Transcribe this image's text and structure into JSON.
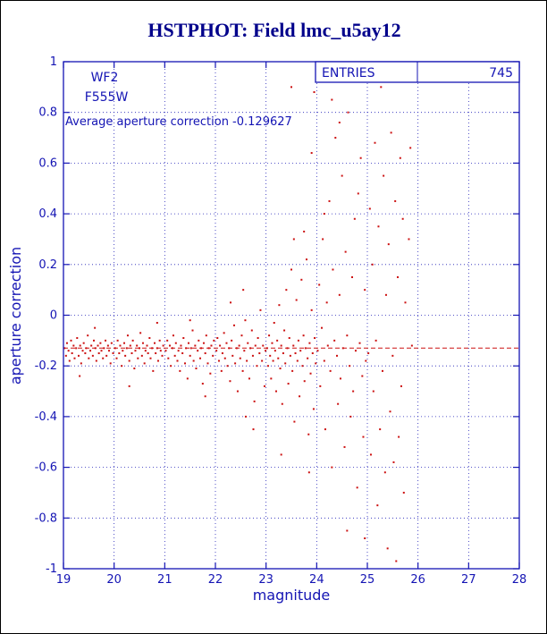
{
  "colors": {
    "title": "#00008b",
    "plot_blue": "#1414b4",
    "grid_blue": "#2020b8",
    "point_red": "#cc1111",
    "refline_red": "#cc1111",
    "background": "#ffffff",
    "border": "#000000"
  },
  "chart_data": {
    "type": "scatter",
    "title": "HSTPHOT: Field lmc_u5ay12",
    "xlabel": "magnitude",
    "ylabel": "aperture correction",
    "xlim": [
      19,
      28
    ],
    "ylim": [
      -1,
      1
    ],
    "x_ticks": [
      19,
      20,
      21,
      22,
      23,
      24,
      25,
      26,
      27,
      28
    ],
    "y_ticks": [
      -1,
      -0.8,
      -0.6,
      -0.4,
      -0.2,
      0,
      0.2,
      0.4,
      0.6,
      0.8,
      1
    ],
    "grid": true,
    "legend_position": "none",
    "stats": {
      "label": "ENTRIES",
      "value": "745"
    },
    "labels": {
      "detector": "WF2",
      "filter": "F555W",
      "average_text": "Average aperture correction -0.129627"
    },
    "reference_line": {
      "y": -0.129627,
      "style": "dashed"
    },
    "points": [
      [
        19.02,
        -0.13
      ],
      [
        19.05,
        -0.16
      ],
      [
        19.07,
        -0.11
      ],
      [
        19.1,
        -0.14
      ],
      [
        19.12,
        -0.18
      ],
      [
        19.15,
        -0.1
      ],
      [
        19.17,
        -0.15
      ],
      [
        19.2,
        -0.12
      ],
      [
        19.22,
        -0.17
      ],
      [
        19.25,
        -0.13
      ],
      [
        19.27,
        -0.09
      ],
      [
        19.3,
        -0.16
      ],
      [
        19.32,
        -0.24
      ],
      [
        19.33,
        -0.12
      ],
      [
        19.35,
        -0.19
      ],
      [
        19.38,
        -0.14
      ],
      [
        19.4,
        -0.11
      ],
      [
        19.43,
        -0.15
      ],
      [
        19.45,
        -0.13
      ],
      [
        19.48,
        -0.08
      ],
      [
        19.5,
        -0.17
      ],
      [
        19.53,
        -0.14
      ],
      [
        19.55,
        -0.12
      ],
      [
        19.58,
        -0.16
      ],
      [
        19.6,
        -0.1
      ],
      [
        19.62,
        -0.05
      ],
      [
        19.63,
        -0.13
      ],
      [
        19.65,
        -0.18
      ],
      [
        19.68,
        -0.12
      ],
      [
        19.7,
        -0.15
      ],
      [
        19.73,
        -0.11
      ],
      [
        19.75,
        -0.14
      ],
      [
        19.78,
        -0.17
      ],
      [
        19.8,
        -0.13
      ],
      [
        19.83,
        -0.1
      ],
      [
        19.85,
        -0.16
      ],
      [
        19.88,
        -0.12
      ],
      [
        19.9,
        -0.14
      ],
      [
        19.93,
        -0.19
      ],
      [
        19.95,
        -0.11
      ],
      [
        19.98,
        -0.15
      ],
      [
        20.02,
        -0.13
      ],
      [
        20.05,
        -0.17
      ],
      [
        20.07,
        -0.1
      ],
      [
        20.1,
        -0.15
      ],
      [
        20.12,
        -0.12
      ],
      [
        20.15,
        -0.2
      ],
      [
        20.17,
        -0.14
      ],
      [
        20.2,
        -0.11
      ],
      [
        20.22,
        -0.16
      ],
      [
        20.25,
        -0.13
      ],
      [
        20.27,
        -0.08
      ],
      [
        20.3,
        -0.28
      ],
      [
        20.3,
        -0.18
      ],
      [
        20.32,
        -0.12
      ],
      [
        20.35,
        -0.15
      ],
      [
        20.37,
        -0.1
      ],
      [
        20.4,
        -0.21
      ],
      [
        20.42,
        -0.14
      ],
      [
        20.45,
        -0.12
      ],
      [
        20.47,
        -0.17
      ],
      [
        20.5,
        -0.13
      ],
      [
        20.52,
        -0.07
      ],
      [
        20.55,
        -0.16
      ],
      [
        20.57,
        -0.11
      ],
      [
        20.6,
        -0.19
      ],
      [
        20.62,
        -0.14
      ],
      [
        20.65,
        -0.12
      ],
      [
        20.67,
        -0.15
      ],
      [
        20.7,
        -0.09
      ],
      [
        20.72,
        -0.17
      ],
      [
        20.75,
        -0.13
      ],
      [
        20.77,
        -0.22
      ],
      [
        20.8,
        -0.11
      ],
      [
        20.82,
        -0.15
      ],
      [
        20.85,
        -0.03
      ],
      [
        20.85,
        -0.13
      ],
      [
        20.87,
        -0.18
      ],
      [
        20.9,
        -0.1
      ],
      [
        20.92,
        -0.14
      ],
      [
        20.95,
        -0.16
      ],
      [
        20.97,
        -0.12
      ],
      [
        21.02,
        -0.14
      ],
      [
        21.05,
        -0.1
      ],
      [
        21.07,
        -0.17
      ],
      [
        21.1,
        -0.12
      ],
      [
        21.12,
        -0.2
      ],
      [
        21.15,
        -0.13
      ],
      [
        21.17,
        -0.08
      ],
      [
        21.2,
        -0.16
      ],
      [
        21.22,
        -0.11
      ],
      [
        21.25,
        -0.18
      ],
      [
        21.27,
        -0.14
      ],
      [
        21.3,
        -0.22
      ],
      [
        21.32,
        -0.12
      ],
      [
        21.35,
        -0.15
      ],
      [
        21.37,
        -0.09
      ],
      [
        21.4,
        -0.19
      ],
      [
        21.42,
        -0.13
      ],
      [
        21.45,
        -0.25
      ],
      [
        21.47,
        -0.11
      ],
      [
        21.5,
        -0.02
      ],
      [
        21.5,
        -0.16
      ],
      [
        21.52,
        -0.13
      ],
      [
        21.55,
        -0.06
      ],
      [
        21.57,
        -0.18
      ],
      [
        21.6,
        -0.12
      ],
      [
        21.62,
        -0.21
      ],
      [
        21.65,
        -0.14
      ],
      [
        21.67,
        -0.1
      ],
      [
        21.7,
        -0.17
      ],
      [
        21.72,
        -0.13
      ],
      [
        21.75,
        -0.27
      ],
      [
        21.77,
        -0.11
      ],
      [
        21.8,
        -0.32
      ],
      [
        21.8,
        -0.15
      ],
      [
        21.82,
        -0.08
      ],
      [
        21.85,
        -0.19
      ],
      [
        21.87,
        -0.13
      ],
      [
        21.9,
        -0.23
      ],
      [
        21.92,
        -0.12
      ],
      [
        21.95,
        -0.16
      ],
      [
        21.97,
        -0.1
      ],
      [
        22.02,
        -0.14
      ],
      [
        22.04,
        -0.09
      ],
      [
        22.07,
        -0.18
      ],
      [
        22.09,
        -0.12
      ],
      [
        22.12,
        -0.22
      ],
      [
        22.14,
        -0.15
      ],
      [
        22.17,
        -0.07
      ],
      [
        22.19,
        -0.17
      ],
      [
        22.22,
        -0.11
      ],
      [
        22.24,
        -0.2
      ],
      [
        22.27,
        -0.13
      ],
      [
        22.29,
        -0.26
      ],
      [
        22.3,
        0.05
      ],
      [
        22.32,
        -0.1
      ],
      [
        22.34,
        -0.16
      ],
      [
        22.37,
        -0.04
      ],
      [
        22.39,
        -0.19
      ],
      [
        22.42,
        -0.13
      ],
      [
        22.44,
        -0.3
      ],
      [
        22.47,
        -0.12
      ],
      [
        22.49,
        -0.17
      ],
      [
        22.52,
        -0.08
      ],
      [
        22.54,
        -0.22
      ],
      [
        22.55,
        0.1
      ],
      [
        22.57,
        -0.14
      ],
      [
        22.59,
        -0.02
      ],
      [
        22.6,
        -0.4
      ],
      [
        22.62,
        -0.18
      ],
      [
        22.64,
        -0.11
      ],
      [
        22.67,
        -0.25
      ],
      [
        22.69,
        -0.13
      ],
      [
        22.72,
        -0.06
      ],
      [
        22.74,
        -0.16
      ],
      [
        22.75,
        -0.45
      ],
      [
        22.77,
        -0.34
      ],
      [
        22.79,
        -0.12
      ],
      [
        22.82,
        -0.2
      ],
      [
        22.84,
        -0.09
      ],
      [
        22.87,
        -0.15
      ],
      [
        22.89,
        0.02
      ],
      [
        22.92,
        -0.18
      ],
      [
        22.94,
        -0.12
      ],
      [
        22.97,
        -0.28
      ],
      [
        22.99,
        -0.14
      ],
      [
        23.02,
        -0.13
      ],
      [
        23.04,
        -0.2
      ],
      [
        23.06,
        -0.08
      ],
      [
        23.08,
        -0.16
      ],
      [
        23.1,
        -0.25
      ],
      [
        23.12,
        -0.11
      ],
      [
        23.14,
        -0.18
      ],
      [
        23.16,
        -0.03
      ],
      [
        23.18,
        -0.14
      ],
      [
        23.2,
        -0.3
      ],
      [
        23.22,
        -0.1
      ],
      [
        23.24,
        -0.17
      ],
      [
        23.26,
        0.04
      ],
      [
        23.28,
        -0.21
      ],
      [
        23.3,
        -0.55
      ],
      [
        23.3,
        -0.12
      ],
      [
        23.32,
        -0.35
      ],
      [
        23.34,
        -0.15
      ],
      [
        23.36,
        -0.06
      ],
      [
        23.38,
        -0.19
      ],
      [
        23.4,
        0.1
      ],
      [
        23.42,
        -0.13
      ],
      [
        23.44,
        -0.27
      ],
      [
        23.46,
        -0.09
      ],
      [
        23.48,
        -0.16
      ],
      [
        23.5,
        0.9
      ],
      [
        23.5,
        0.18
      ],
      [
        23.52,
        -0.22
      ],
      [
        23.54,
        -0.12
      ],
      [
        23.55,
        0.3
      ],
      [
        23.56,
        -0.42
      ],
      [
        23.58,
        -0.15
      ],
      [
        23.6,
        0.06
      ],
      [
        23.62,
        -0.18
      ],
      [
        23.64,
        -0.1
      ],
      [
        23.66,
        -0.32
      ],
      [
        23.68,
        -0.14
      ],
      [
        23.7,
        0.14
      ],
      [
        23.72,
        -0.2
      ],
      [
        23.74,
        -0.08
      ],
      [
        23.75,
        0.33
      ],
      [
        23.76,
        -0.26
      ],
      [
        23.78,
        -0.13
      ],
      [
        23.8,
        0.22
      ],
      [
        23.82,
        -0.17
      ],
      [
        23.84,
        -0.47
      ],
      [
        23.85,
        -0.62
      ],
      [
        23.86,
        -0.11
      ],
      [
        23.88,
        -0.23
      ],
      [
        23.9,
        0.64
      ],
      [
        23.9,
        0.02
      ],
      [
        23.92,
        -0.15
      ],
      [
        23.94,
        -0.37
      ],
      [
        23.95,
        0.88
      ],
      [
        23.96,
        -0.09
      ],
      [
        23.98,
        -0.19
      ],
      [
        24.02,
        -0.14
      ],
      [
        24.05,
        0.12
      ],
      [
        24.07,
        -0.28
      ],
      [
        24.1,
        -0.05
      ],
      [
        24.12,
        0.3
      ],
      [
        24.15,
        0.4
      ],
      [
        24.15,
        -0.18
      ],
      [
        24.17,
        -0.45
      ],
      [
        24.2,
        0.05
      ],
      [
        24.22,
        -0.12
      ],
      [
        24.25,
        0.45
      ],
      [
        24.27,
        -0.22
      ],
      [
        24.3,
        0.85
      ],
      [
        24.3,
        -0.6
      ],
      [
        24.32,
        0.18
      ],
      [
        24.35,
        -0.1
      ],
      [
        24.37,
        0.7
      ],
      [
        24.4,
        -0.16
      ],
      [
        24.42,
        -0.35
      ],
      [
        24.45,
        0.76
      ],
      [
        24.45,
        0.08
      ],
      [
        24.47,
        -0.25
      ],
      [
        24.5,
        0.55
      ],
      [
        24.52,
        -0.13
      ],
      [
        24.55,
        -0.52
      ],
      [
        24.57,
        0.25
      ],
      [
        24.6,
        -0.85
      ],
      [
        24.6,
        -0.08
      ],
      [
        24.62,
        0.8
      ],
      [
        24.65,
        -0.2
      ],
      [
        24.67,
        -0.4
      ],
      [
        24.7,
        0.15
      ],
      [
        24.72,
        -0.3
      ],
      [
        24.75,
        0.38
      ],
      [
        24.77,
        -0.14
      ],
      [
        24.8,
        -0.68
      ],
      [
        24.82,
        0.48
      ],
      [
        24.85,
        -0.11
      ],
      [
        24.87,
        0.62
      ],
      [
        24.9,
        -0.24
      ],
      [
        24.92,
        -0.48
      ],
      [
        24.95,
        -0.88
      ],
      [
        24.95,
        0.1
      ],
      [
        24.97,
        -0.18
      ],
      [
        25.02,
        -0.15
      ],
      [
        25.05,
        0.42
      ],
      [
        25.07,
        -0.55
      ],
      [
        25.1,
        0.2
      ],
      [
        25.12,
        -0.3
      ],
      [
        25.15,
        0.68
      ],
      [
        25.17,
        -0.1
      ],
      [
        25.2,
        -0.75
      ],
      [
        25.22,
        0.35
      ],
      [
        25.25,
        -0.45
      ],
      [
        25.27,
        0.9
      ],
      [
        25.3,
        -0.22
      ],
      [
        25.32,
        0.55
      ],
      [
        25.35,
        -0.62
      ],
      [
        25.37,
        0.08
      ],
      [
        25.4,
        -0.92
      ],
      [
        25.42,
        0.28
      ],
      [
        25.45,
        -0.38
      ],
      [
        25.47,
        0.72
      ],
      [
        25.5,
        -0.16
      ],
      [
        25.52,
        -0.58
      ],
      [
        25.55,
        0.45
      ],
      [
        25.57,
        -0.97
      ],
      [
        25.6,
        0.15
      ],
      [
        25.62,
        -0.48
      ],
      [
        25.65,
        0.62
      ],
      [
        25.67,
        -0.28
      ],
      [
        25.7,
        0.38
      ],
      [
        25.72,
        -0.7
      ],
      [
        25.75,
        0.05
      ],
      [
        25.82,
        0.3
      ],
      [
        25.85,
        0.66
      ],
      [
        25.88,
        -0.12
      ]
    ]
  }
}
